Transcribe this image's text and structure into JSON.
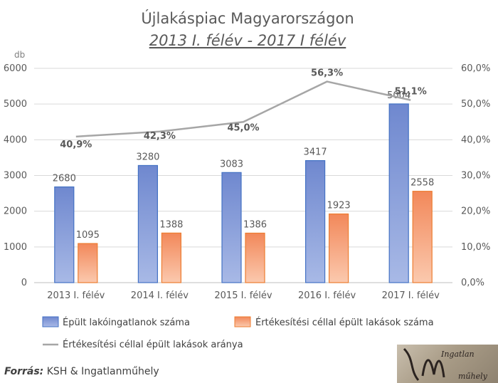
{
  "chart_data": {
    "type": "bar",
    "title": "Újlakáspiac Magyarországon",
    "subtitle": "2013 I. félév - 2017 I félév",
    "ylabel": "db",
    "categories": [
      "2013 I. félév",
      "2014 I. félév",
      "2015 I. félév",
      "2016 I. félév",
      "2017 I. félév"
    ],
    "ylim": [
      0,
      6000
    ],
    "yticks": [
      "0",
      "1000",
      "2000",
      "3000",
      "4000",
      "5000",
      "6000"
    ],
    "y2lim": [
      0,
      60
    ],
    "y2ticks": [
      "0,0%",
      "10,0%",
      "20,0%",
      "30,0%",
      "40,0%",
      "50,0%",
      "60,0%"
    ],
    "grid": true,
    "legend_position": "bottom",
    "series": [
      {
        "name": "Épült lakóingatlanok száma",
        "type": "bar",
        "axis": "left",
        "values": [
          2680,
          3280,
          3083,
          3417,
          5004
        ],
        "labels": [
          "2680",
          "3280",
          "3083",
          "3417",
          "5004"
        ],
        "color": "#7f97d6"
      },
      {
        "name": "Értékesítési céllal épült lakások száma",
        "type": "bar",
        "axis": "left",
        "values": [
          1095,
          1388,
          1386,
          1923,
          2558
        ],
        "labels": [
          "1095",
          "1388",
          "1386",
          "1923",
          "2558"
        ],
        "color": "#f4a582"
      },
      {
        "name": "Értékesítési céllal épült lakások aránya",
        "type": "line",
        "axis": "right",
        "values": [
          40.9,
          42.3,
          45.0,
          56.3,
          51.1
        ],
        "labels": [
          "40,9%",
          "42,3%",
          "45,0%",
          "56,3%",
          "51,1%"
        ],
        "color": "#a6a6a6"
      }
    ]
  },
  "source": {
    "label": "Forrás:",
    "text": "KSH & Ingatlanműhely"
  },
  "logo": {
    "text_top": "Ingatlan",
    "text_bottom": "műhely"
  }
}
